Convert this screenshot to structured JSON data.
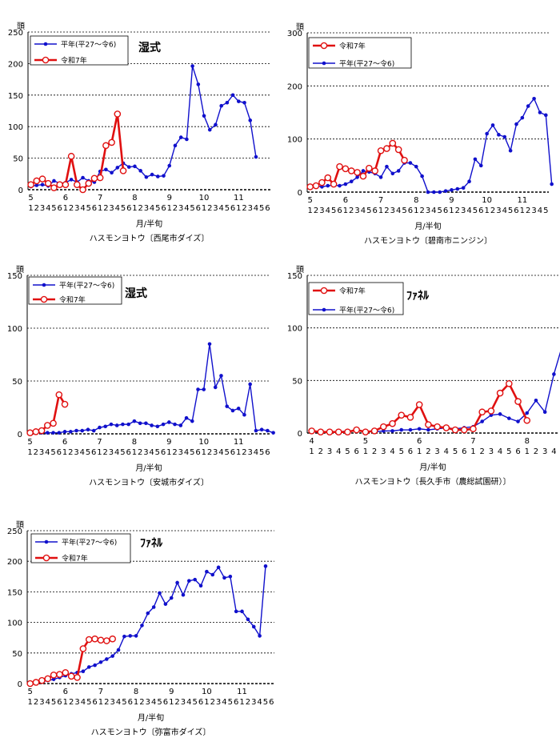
{
  "colors": {
    "heinen": "#1010cc",
    "reiwa": "#e01010",
    "grid": "#000000"
  },
  "chart_data": [
    {
      "type": "line",
      "unit_label": "頭",
      "tag": "湿式",
      "xlabel": "月/半旬",
      "caption": "ハスモンヨトウ〔西尾市ダイズ〕",
      "ylim": [
        0,
        250
      ],
      "yticks": [
        0,
        50,
        100,
        150,
        200,
        250
      ],
      "month_labels": [
        "5",
        "6",
        "7",
        "8",
        "9",
        "10",
        "11"
      ],
      "sub_labels": [
        "1",
        "2",
        "3",
        "4",
        "5",
        "6",
        "1",
        "2",
        "3",
        "4",
        "5",
        "6",
        "1",
        "2",
        "3",
        "4",
        "5",
        "6",
        "1",
        "2",
        "3",
        "4",
        "5",
        "6",
        "1",
        "2",
        "3",
        "4",
        "5",
        "6",
        "1",
        "2",
        "3",
        "4",
        "5",
        "6",
        "1",
        "2",
        "3",
        "4",
        "5",
        "6"
      ],
      "legend_position": "top-left",
      "series": [
        {
          "name": "平年(平27～令6)",
          "values": [
            5,
            7,
            8,
            6,
            14,
            10,
            11,
            16,
            12,
            19,
            14,
            12,
            29,
            32,
            27,
            35,
            42,
            36,
            37,
            30,
            20,
            24,
            21,
            22,
            38,
            70,
            83,
            80,
            196,
            167,
            117,
            95,
            103,
            133,
            138,
            150,
            140,
            138,
            110,
            52
          ]
        },
        {
          "name": "令和7年",
          "values": [
            8,
            14,
            17,
            10,
            3,
            8,
            8,
            53,
            8,
            0,
            10,
            18,
            19,
            70,
            75,
            120,
            30
          ]
        }
      ]
    },
    {
      "type": "line",
      "unit_label": "頭",
      "tag": "",
      "xlabel": "月/半旬",
      "caption": "ハスモンヨトウ〔碧南市ニンジン〕",
      "ylim": [
        0,
        300
      ],
      "yticks": [
        0,
        100,
        200,
        300
      ],
      "month_labels": [
        "5",
        "6",
        "7",
        "8",
        "9",
        "10",
        "11"
      ],
      "sub_labels": [
        "1",
        "2",
        "3",
        "4",
        "5",
        "6",
        "1",
        "2",
        "3",
        "4",
        "5",
        "6",
        "1",
        "2",
        "3",
        "4",
        "5",
        "6",
        "1",
        "2",
        "3",
        "4",
        "5",
        "6",
        "1",
        "2",
        "3",
        "4",
        "5",
        "6",
        "1",
        "2",
        "3",
        "4",
        "5",
        "6",
        "1",
        "2",
        "3",
        "4",
        "5"
      ],
      "legend_position": "top-left",
      "series": [
        {
          "name": "令和7年",
          "values": [
            10,
            12,
            18,
            27,
            15,
            48,
            44,
            40,
            37,
            30,
            45,
            40,
            78,
            82,
            92,
            80,
            60
          ]
        },
        {
          "name": "平年(平27～令6)",
          "values": [
            10,
            12,
            10,
            12,
            13,
            12,
            15,
            20,
            28,
            40,
            38,
            35,
            28,
            48,
            35,
            40,
            55,
            55,
            48,
            30,
            0,
            0,
            0,
            2,
            4,
            6,
            8,
            20,
            62,
            50,
            110,
            126,
            108,
            104,
            78,
            128,
            140,
            162,
            176,
            150,
            145,
            15
          ]
        }
      ]
    },
    {
      "type": "line",
      "unit_label": "頭",
      "tag": "湿式",
      "xlabel": "月/半旬",
      "caption": "ハスモンヨトウ〔安城市ダイズ〕",
      "ylim": [
        0,
        150
      ],
      "yticks": [
        0,
        50,
        100,
        150
      ],
      "month_labels": [
        "5",
        "6",
        "7",
        "8",
        "9",
        "10",
        "11"
      ],
      "sub_labels": [
        "1",
        "2",
        "3",
        "4",
        "5",
        "6",
        "1",
        "2",
        "3",
        "4",
        "5",
        "6",
        "1",
        "2",
        "3",
        "4",
        "5",
        "6",
        "1",
        "2",
        "3",
        "4",
        "5",
        "6",
        "1",
        "2",
        "3",
        "4",
        "5",
        "6",
        "1",
        "2",
        "3",
        "4",
        "5",
        "6",
        "1",
        "2",
        "3",
        "4",
        "5",
        "6"
      ],
      "legend_position": "top-left",
      "series": [
        {
          "name": "平年(平27～令6)",
          "values": [
            1,
            1,
            1,
            1,
            1,
            1,
            2,
            2,
            3,
            3,
            4,
            3,
            6,
            7,
            9,
            8,
            9,
            9,
            12,
            10,
            10,
            8,
            7,
            9,
            11,
            9,
            8,
            15,
            12,
            42,
            42,
            85,
            44,
            55,
            26,
            22,
            24,
            18,
            47,
            3,
            4,
            3,
            1
          ]
        },
        {
          "name": "令和7年",
          "values": [
            1,
            2,
            3,
            8,
            10,
            37,
            28
          ]
        }
      ]
    },
    {
      "type": "line",
      "unit_label": "頭",
      "tag": "ﾌｧﾈﾙ",
      "xlabel": "月/半旬",
      "caption": "ハスモンヨトウ〔長久手市（農総試園研）〕",
      "ylim": [
        0,
        150
      ],
      "yticks": [
        0,
        50,
        100,
        150
      ],
      "month_labels": [
        "4",
        "5",
        "6",
        "7",
        "8"
      ],
      "sub_labels": [
        "1",
        "2",
        "3",
        "4",
        "5",
        "6",
        "1",
        "2",
        "3",
        "4",
        "5",
        "6",
        "1",
        "2",
        "3",
        "4",
        "5",
        "6",
        "1",
        "2",
        "3",
        "4",
        "5",
        "6",
        "1",
        "2",
        "3",
        "4"
      ],
      "legend_position": "top-left",
      "series": [
        {
          "name": "令和7年",
          "values": [
            2,
            1,
            1,
            1,
            1,
            3,
            1,
            2,
            6,
            9,
            17,
            15,
            27,
            8,
            6,
            5,
            3,
            3,
            4,
            20,
            21,
            38,
            47,
            30,
            12
          ]
        },
        {
          "name": "平年(平27～令6)",
          "values": [
            1,
            1,
            1,
            1,
            2,
            2,
            2,
            1,
            2,
            2,
            3,
            3,
            4,
            3,
            4,
            5,
            4,
            5,
            6,
            11,
            17,
            18,
            14,
            11,
            19,
            31,
            20,
            56,
            85,
            86
          ]
        }
      ]
    },
    {
      "type": "line",
      "unit_label": "頭",
      "tag": "ﾌｧﾈﾙ",
      "xlabel": "月/半旬",
      "caption": "ハスモンヨトウ〔弥富市ダイズ〕",
      "ylim": [
        0,
        250
      ],
      "yticks": [
        0,
        50,
        100,
        150,
        200,
        250
      ],
      "month_labels": [
        "5",
        "6",
        "7",
        "8",
        "9",
        "10",
        "11"
      ],
      "sub_labels": [
        "1",
        "2",
        "3",
        "4",
        "5",
        "6",
        "1",
        "2",
        "3",
        "4",
        "5",
        "6",
        "1",
        "2",
        "3",
        "4",
        "5",
        "6",
        "1",
        "2",
        "3",
        "4",
        "5",
        "6",
        "1",
        "2",
        "3",
        "4",
        "5",
        "6",
        "1",
        "2",
        "3",
        "4",
        "5",
        "6",
        "1",
        "2",
        "3",
        "4",
        "5",
        "6"
      ],
      "legend_position": "top-left",
      "series": [
        {
          "name": "平年(平27～令6)",
          "values": [
            0,
            0,
            3,
            5,
            7,
            10,
            13,
            16,
            18,
            20,
            27,
            30,
            35,
            40,
            45,
            55,
            77,
            78,
            78,
            95,
            115,
            125,
            148,
            130,
            140,
            165,
            145,
            168,
            170,
            160,
            183,
            178,
            190,
            173,
            175,
            118,
            118,
            105,
            93,
            78,
            192
          ]
        },
        {
          "name": "令和7年",
          "values": [
            0,
            2,
            5,
            8,
            14,
            15,
            18,
            12,
            10,
            57,
            72,
            73,
            71,
            70,
            73
          ]
        }
      ]
    }
  ]
}
